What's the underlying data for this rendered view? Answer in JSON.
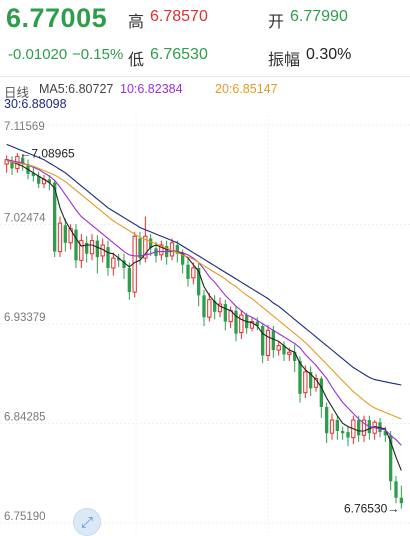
{
  "quote": {
    "last_price": "6.77005",
    "change": "-0.01020",
    "change_pct": "−0.15%",
    "high_label": "高",
    "high_value": "6.78570",
    "low_label": "低",
    "low_value": "6.76530",
    "open_label": "开",
    "open_value": "6.77990",
    "amplitude_label": "振幅",
    "amplitude_value": "0.30%"
  },
  "legend": {
    "period": "日线",
    "ma5": "MA5:6.80727",
    "ma10": "10:6.82384",
    "ma20": "20:6.85147",
    "ma30": "30:6.88098"
  },
  "colors": {
    "up": "#e03030",
    "down": "#2e9d4c",
    "ma5": "#222222",
    "ma10": "#9b2fd6",
    "ma20": "#e59b23",
    "ma30": "#1c2a7a"
  },
  "chart_data": {
    "type": "candlestick",
    "ylim": [
      6.7519,
      7.11569
    ],
    "y_ticks": [
      "7.11569",
      "7.02474",
      "6.93379",
      "6.84285",
      "6.75190"
    ],
    "y_tick_values": [
      7.11569,
      7.02474,
      6.93379,
      6.84285,
      6.7519
    ],
    "max_label": "←7.08965",
    "min_label": "6.76530→",
    "max_value": 7.08965,
    "min_value": 6.7653,
    "candles": [
      [
        7.08,
        7.084,
        7.072,
        7.088
      ],
      [
        7.082,
        7.076,
        7.07,
        7.087
      ],
      [
        7.076,
        7.087,
        7.072,
        7.09
      ],
      [
        7.086,
        7.08,
        7.074,
        7.089
      ],
      [
        7.08,
        7.071,
        7.066,
        7.084
      ],
      [
        7.072,
        7.069,
        7.064,
        7.077
      ],
      [
        7.069,
        7.062,
        7.058,
        7.073
      ],
      [
        7.062,
        7.066,
        7.058,
        7.07
      ],
      [
        7.066,
        7.063,
        7.056,
        7.07
      ],
      [
        7.063,
        7.0,
        6.995,
        7.066
      ],
      [
        7.0,
        7.026,
        6.995,
        7.032
      ],
      [
        7.024,
        7.008,
        7.0,
        7.03
      ],
      [
        7.008,
        7.021,
        7.002,
        7.025
      ],
      [
        7.02,
        6.992,
        6.985,
        7.025
      ],
      [
        6.992,
        7.01,
        6.985,
        7.016
      ],
      [
        7.008,
        6.998,
        6.99,
        7.014
      ],
      [
        6.998,
        7.01,
        6.992,
        7.016
      ],
      [
        7.01,
        6.995,
        6.98,
        7.015
      ],
      [
        6.996,
        7.006,
        6.99,
        7.012
      ],
      [
        7.004,
        6.985,
        6.978,
        7.01
      ],
      [
        6.985,
        6.994,
        6.978,
        6.999
      ],
      [
        6.994,
        6.992,
        6.986,
        6.998
      ],
      [
        6.992,
        6.985,
        6.975,
        6.998
      ],
      [
        6.985,
        6.963,
        6.956,
        6.99
      ],
      [
        6.963,
        7.014,
        6.958,
        7.018
      ],
      [
        7.012,
        6.994,
        6.988,
        7.018
      ],
      [
        6.994,
        7.014,
        6.99,
        7.032
      ],
      [
        7.012,
        7.003,
        6.996,
        7.016
      ],
      [
        7.003,
        6.996,
        6.99,
        7.009
      ],
      [
        6.997,
        7.006,
        6.992,
        7.01
      ],
      [
        7.005,
        6.995,
        6.988,
        7.01
      ],
      [
        6.996,
        7.008,
        6.992,
        7.012
      ],
      [
        7.006,
        6.998,
        6.99,
        7.01
      ],
      [
        6.998,
        6.988,
        6.98,
        7.002
      ],
      [
        6.988,
        6.975,
        6.968,
        6.993
      ],
      [
        6.976,
        6.985,
        6.97,
        6.99
      ],
      [
        6.985,
        6.96,
        6.95,
        6.99
      ],
      [
        6.96,
        6.94,
        6.932,
        6.965
      ],
      [
        6.94,
        6.956,
        6.936,
        6.962
      ],
      [
        6.955,
        6.945,
        6.938,
        6.96
      ],
      [
        6.945,
        6.952,
        6.94,
        6.958
      ],
      [
        6.952,
        6.936,
        6.928,
        6.956
      ],
      [
        6.936,
        6.946,
        6.93,
        6.95
      ],
      [
        6.946,
        6.925,
        6.918,
        6.95
      ],
      [
        6.926,
        6.942,
        6.92,
        6.946
      ],
      [
        6.942,
        6.93,
        6.925,
        6.944
      ],
      [
        6.93,
        6.936,
        6.927,
        6.94
      ],
      [
        6.936,
        6.932,
        6.928,
        6.94
      ],
      [
        6.932,
        6.905,
        6.898,
        6.935
      ],
      [
        6.905,
        6.928,
        6.9,
        6.933
      ],
      [
        6.928,
        6.91,
        6.903,
        6.932
      ],
      [
        6.91,
        6.914,
        6.905,
        6.918
      ],
      [
        6.914,
        6.906,
        6.9,
        6.918
      ],
      [
        6.906,
        6.908,
        6.9,
        6.912
      ],
      [
        6.908,
        6.9,
        6.89,
        6.915
      ],
      [
        6.9,
        6.87,
        6.862,
        6.904
      ],
      [
        6.871,
        6.89,
        6.866,
        6.896
      ],
      [
        6.89,
        6.875,
        6.868,
        6.895
      ],
      [
        6.876,
        6.884,
        6.872,
        6.888
      ],
      [
        6.884,
        6.858,
        6.848,
        6.886
      ],
      [
        6.858,
        6.834,
        6.825,
        6.862
      ],
      [
        6.834,
        6.846,
        6.828,
        6.852
      ],
      [
        6.846,
        6.836,
        6.828,
        6.85
      ],
      [
        6.836,
        6.834,
        6.828,
        6.84
      ],
      [
        6.835,
        6.83,
        6.822,
        6.84
      ],
      [
        6.83,
        6.846,
        6.824,
        6.85
      ],
      [
        6.846,
        6.832,
        6.826,
        6.85
      ],
      [
        6.832,
        6.846,
        6.826,
        6.85
      ],
      [
        6.846,
        6.834,
        6.828,
        6.85
      ],
      [
        6.834,
        6.844,
        6.828,
        6.846
      ],
      [
        6.844,
        6.835,
        6.83,
        6.848
      ],
      [
        6.836,
        6.832,
        6.826,
        6.84
      ],
      [
        6.832,
        6.79,
        6.782,
        6.836
      ],
      [
        6.79,
        6.775,
        6.77,
        6.795
      ],
      [
        6.775,
        6.77,
        6.765,
        6.786
      ]
    ],
    "series": [
      {
        "key": "ma5",
        "values": [
          7.083,
          7.082,
          7.08,
          7.078,
          7.075,
          7.072,
          7.069,
          7.066,
          7.063,
          7.058,
          7.04,
          7.028,
          7.02,
          7.012,
          7.005,
          7.006,
          7.006,
          7.004,
          7.002,
          6.999,
          6.998,
          6.994,
          6.99,
          6.986,
          6.99,
          6.992,
          6.998,
          7.004,
          7.006,
          7.004,
          7.002,
          7.001,
          7.0,
          6.998,
          6.994,
          6.988,
          6.982,
          6.968,
          6.96,
          6.954,
          6.95,
          6.948,
          6.946,
          6.941,
          6.938,
          6.936,
          6.935,
          6.932,
          6.925,
          6.922,
          6.92,
          6.918,
          6.914,
          6.91,
          6.908,
          6.898,
          6.892,
          6.888,
          6.883,
          6.876,
          6.866,
          6.858,
          6.85,
          6.843,
          6.84,
          6.838,
          6.836,
          6.836,
          6.838,
          6.84,
          6.839,
          6.838,
          6.826,
          6.812,
          6.8
        ]
      },
      {
        "key": "ma10",
        "values": [
          7.084,
          7.083,
          7.082,
          7.081,
          7.079,
          7.077,
          7.075,
          7.072,
          7.069,
          7.065,
          7.059,
          7.052,
          7.045,
          7.038,
          7.032,
          7.028,
          7.024,
          7.02,
          7.016,
          7.012,
          7.008,
          7.004,
          7.0,
          6.997,
          6.996,
          6.996,
          6.997,
          6.998,
          7.0,
          7.0,
          7.0,
          7.0,
          7.0,
          6.999,
          6.997,
          6.994,
          6.99,
          6.984,
          6.977,
          6.972,
          6.966,
          6.96,
          6.955,
          6.95,
          6.946,
          6.942,
          6.94,
          6.937,
          6.934,
          6.931,
          6.928,
          6.925,
          6.922,
          6.919,
          6.916,
          6.912,
          6.906,
          6.901,
          6.896,
          6.89,
          6.884,
          6.876,
          6.869,
          6.862,
          6.857,
          6.852,
          6.847,
          6.843,
          6.84,
          6.839,
          6.838,
          6.837,
          6.832,
          6.828,
          6.823
        ]
      },
      {
        "key": "ma20",
        "values": [
          7.083,
          7.082,
          7.081,
          7.08,
          7.079,
          7.078,
          7.076,
          7.074,
          7.072,
          7.07,
          7.067,
          7.064,
          7.06,
          7.056,
          7.052,
          7.048,
          7.044,
          7.04,
          7.036,
          7.032,
          7.028,
          7.025,
          7.022,
          7.019,
          7.016,
          7.013,
          7.011,
          7.009,
          7.007,
          7.005,
          7.003,
          7.001,
          6.999,
          6.997,
          6.995,
          6.993,
          6.99,
          6.987,
          6.984,
          6.981,
          6.978,
          6.975,
          6.971,
          6.968,
          6.964,
          6.96,
          6.957,
          6.953,
          6.949,
          6.945,
          6.941,
          6.937,
          6.933,
          6.929,
          6.925,
          6.921,
          6.917,
          6.912,
          6.907,
          6.902,
          6.897,
          6.892,
          6.887,
          6.882,
          6.877,
          6.872,
          6.868,
          6.864,
          6.86,
          6.857,
          6.855,
          6.853,
          6.851,
          6.849,
          6.847
        ]
      },
      {
        "key": "ma30",
        "values": [
          7.098,
          7.096,
          7.094,
          7.092,
          7.09,
          7.088,
          7.086,
          7.084,
          7.081,
          7.078,
          7.075,
          7.072,
          7.068,
          7.064,
          7.06,
          7.056,
          7.052,
          7.048,
          7.044,
          7.04,
          7.037,
          7.034,
          7.031,
          7.028,
          7.025,
          7.022,
          7.02,
          7.018,
          7.016,
          7.014,
          7.012,
          7.01,
          7.008,
          7.005,
          7.002,
          6.999,
          6.996,
          6.993,
          6.99,
          6.987,
          6.984,
          6.981,
          6.978,
          6.975,
          6.972,
          6.969,
          6.966,
          6.963,
          6.96,
          6.957,
          6.953,
          6.95,
          6.946,
          6.942,
          6.938,
          6.934,
          6.93,
          6.926,
          6.922,
          6.918,
          6.914,
          6.91,
          6.906,
          6.902,
          6.898,
          6.894,
          6.891,
          6.888,
          6.885,
          6.883,
          6.882,
          6.881,
          6.88,
          6.879,
          6.878
        ]
      }
    ]
  }
}
